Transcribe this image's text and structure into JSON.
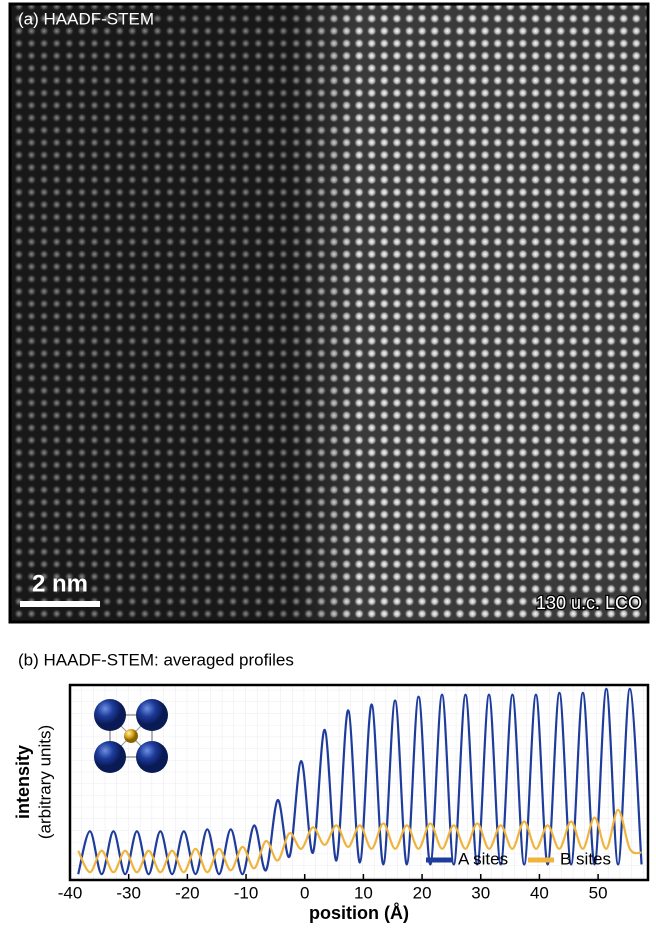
{
  "panel_a": {
    "label": "(a) HAADF-STEM",
    "scale_bar": "2 nm",
    "annotation": "130 u.c. LCO"
  },
  "chart_data": {
    "type": "line",
    "title": "(b) HAADF-STEM: averaged profiles",
    "xlabel": "position (Å)",
    "ylabel": "intensity",
    "ylabel_note": "(arbitrary units)",
    "x": [
      -38.6,
      -36.6,
      -34.6,
      -32.6,
      -30.6,
      -28.6,
      -26.6,
      -24.6,
      -22.6,
      -20.6,
      -18.6,
      -16.6,
      -14.6,
      -12.6,
      -10.6,
      -8.6,
      -6.6,
      -4.6,
      -2.6,
      -0.6,
      1.4,
      3.4,
      5.4,
      7.4,
      9.4,
      11.4,
      13.4,
      15.4,
      17.4,
      19.4,
      21.4,
      23.4,
      25.4,
      27.4,
      29.4,
      31.4,
      33.4,
      35.4,
      37.4,
      39.4,
      41.4,
      43.4,
      45.4,
      47.4,
      49.4,
      51.4,
      53.4,
      55.4,
      57.4
    ],
    "series": [
      {
        "name": "A sites",
        "color": "#1e3c9c",
        "values": [
          3,
          25,
          3,
          25,
          3,
          25,
          3,
          25,
          3,
          25,
          3,
          26,
          3,
          26,
          3,
          28,
          5,
          41,
          12,
          61,
          14,
          77,
          10,
          87,
          9,
          90,
          8,
          92,
          8,
          94,
          8,
          95,
          8,
          95,
          8,
          95,
          8,
          95,
          8,
          95,
          8,
          96,
          8,
          96,
          8,
          98,
          8,
          98,
          8
        ]
      },
      {
        "name": "B sites",
        "color": "#f0b43c",
        "values": [
          15,
          4,
          15,
          4,
          15,
          4,
          15,
          4,
          15,
          4,
          16,
          4,
          16,
          5,
          17,
          6,
          20,
          10,
          24,
          16,
          27,
          18,
          28,
          17,
          28,
          16,
          29,
          16,
          28,
          16,
          29,
          16,
          28,
          16,
          29,
          16,
          28,
          16,
          30,
          16,
          28,
          16,
          30,
          16,
          32,
          16,
          36,
          16,
          14
        ]
      }
    ],
    "xlim": [
      -40,
      58.5
    ],
    "xticks": [
      -40,
      -30,
      -20,
      -10,
      0,
      10,
      20,
      30,
      40,
      50
    ],
    "ylim": [
      0,
      100
    ],
    "grid": true,
    "legend": "lower right"
  }
}
